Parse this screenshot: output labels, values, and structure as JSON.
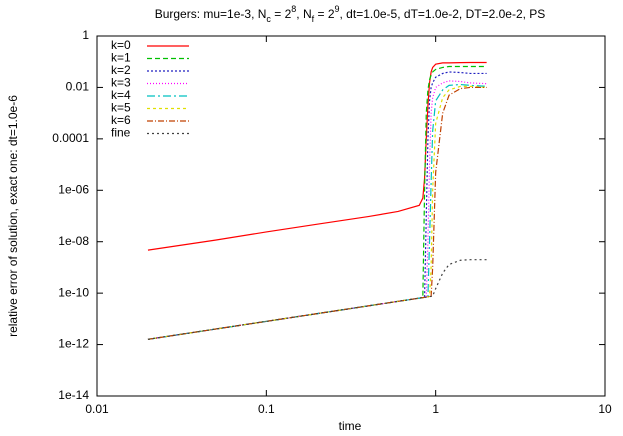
{
  "chart_data": {
    "type": "line",
    "title": [
      {
        "text": "Burgers: mu=1e-3, N"
      },
      {
        "sub": "c"
      },
      {
        "text": " = 2"
      },
      {
        "sup": "8"
      },
      {
        "text": ", N"
      },
      {
        "sub": "f"
      },
      {
        "text": " = 2"
      },
      {
        "sup": "9"
      },
      {
        "text": ", dt=1.0e-5, dT=1.0e-2, DT=2.0e-2, PS"
      }
    ],
    "x_label": "time",
    "y_label": "relative error of solution, exact one: dt=1.0e-6",
    "x_scale": "log",
    "y_scale": "log",
    "xlim": [
      0.01,
      10
    ],
    "xticks": [
      0.01,
      0.1,
      1,
      10
    ],
    "ylim": [
      1e-14,
      1
    ],
    "yticks": [
      {
        "value": 1e-14,
        "label": "1e-14"
      },
      {
        "value": 1e-12,
        "label": "1e-12"
      },
      {
        "value": 1e-10,
        "label": "1e-10"
      },
      {
        "value": 1e-08,
        "label": "1e-08"
      },
      {
        "value": 1e-06,
        "label": "1e-06"
      },
      {
        "value": 0.0001,
        "label": "0.0001"
      },
      0.01,
      1
    ],
    "legend": "top-left",
    "x": [
      0.02,
      0.05,
      0.1,
      0.2,
      0.4,
      0.6,
      0.8,
      0.84,
      0.86,
      0.88,
      0.9,
      0.92,
      0.94,
      0.96,
      1.0,
      1.1,
      1.2,
      1.4,
      1.6,
      2.0
    ],
    "series": [
      {
        "name": "k=0",
        "color": "#ff0000",
        "dash": "none",
        "values": [
          4.7e-09,
          1.15e-08,
          2.4e-08,
          4.8e-08,
          9.5e-08,
          1.5e-07,
          2.6e-07,
          5e-07,
          3e-06,
          0.0001,
          0.002,
          0.015,
          0.04,
          0.06,
          0.08,
          0.09,
          0.09,
          0.092,
          0.093,
          0.093
        ]
      },
      {
        "name": "k=1",
        "color": "#00c000",
        "dash": "5,3",
        "values": [
          1.6e-12,
          4e-12,
          8e-12,
          1.6e-11,
          3.2e-11,
          4.8e-11,
          6.4e-11,
          6.7e-11,
          1e-06,
          0.001,
          0.008,
          0.02,
          0.03,
          0.04,
          0.05,
          0.06,
          0.065,
          0.065,
          0.065,
          0.065
        ]
      },
      {
        "name": "k=2",
        "color": "#2020c0",
        "dash": "2,2",
        "values": [
          1.6e-12,
          4e-12,
          8e-12,
          1.6e-11,
          3.2e-11,
          4.8e-11,
          6.4e-11,
          6.7e-11,
          6.9e-11,
          1e-07,
          0.0001,
          0.003,
          0.01,
          0.015,
          0.025,
          0.035,
          0.04,
          0.038,
          0.035,
          0.035
        ]
      },
      {
        "name": "k=3",
        "color": "#ff00ff",
        "dash": "1,2",
        "values": [
          1.6e-12,
          4e-12,
          8e-12,
          1.6e-11,
          3.2e-11,
          4.8e-11,
          6.4e-11,
          6.7e-11,
          6.9e-11,
          7e-11,
          1e-08,
          1e-05,
          0.001,
          0.004,
          0.01,
          0.015,
          0.018,
          0.017,
          0.015,
          0.014
        ]
      },
      {
        "name": "k=4",
        "color": "#00c0c0",
        "dash": "8,3,2,3",
        "values": [
          1.6e-12,
          4e-12,
          8e-12,
          1.6e-11,
          3.2e-11,
          4.8e-11,
          6.4e-11,
          6.7e-11,
          6.9e-11,
          7e-11,
          7.2e-11,
          1e-08,
          2e-06,
          0.0002,
          0.003,
          0.008,
          0.012,
          0.013,
          0.012,
          0.011
        ]
      },
      {
        "name": "k=5",
        "color": "#e0e000",
        "dash": "3,3",
        "values": [
          1.6e-12,
          4e-12,
          8e-12,
          1.6e-11,
          3.2e-11,
          4.8e-11,
          6.4e-11,
          6.7e-11,
          6.9e-11,
          7e-11,
          7.2e-11,
          7.4e-11,
          1e-09,
          1e-06,
          0.0004,
          0.004,
          0.008,
          0.011,
          0.011,
          0.01
        ]
      },
      {
        "name": "k=6",
        "color": "#c04000",
        "dash": "6,2,1,2",
        "values": [
          1.6e-12,
          4e-12,
          8e-12,
          1.6e-11,
          3.2e-11,
          4.8e-11,
          6.4e-11,
          6.7e-11,
          6.9e-11,
          7e-11,
          7.2e-11,
          7.4e-11,
          7.5e-11,
          1e-09,
          5e-06,
          0.001,
          0.005,
          0.009,
          0.01,
          0.01
        ]
      },
      {
        "name": "fine",
        "color": "#404040",
        "dash": "2,3",
        "values": [
          1.6e-12,
          4e-12,
          8e-12,
          1.6e-11,
          3.2e-11,
          4.8e-11,
          6.4e-11,
          6.7e-11,
          6.9e-11,
          7e-11,
          7.2e-11,
          7.4e-11,
          7.5e-11,
          7.7e-11,
          1.5e-10,
          6e-10,
          1.3e-09,
          1.9e-09,
          2e-09,
          2e-09
        ]
      }
    ]
  }
}
